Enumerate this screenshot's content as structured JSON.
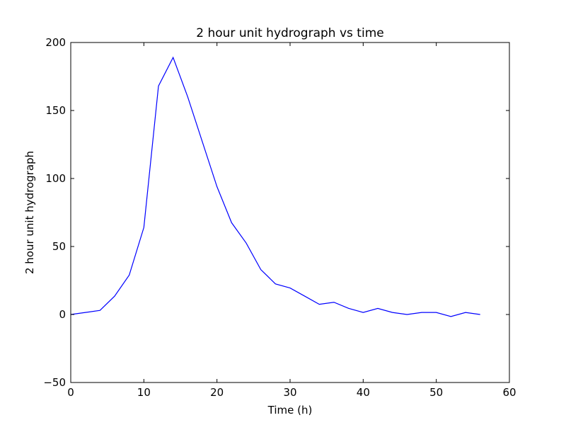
{
  "chart_data": {
    "type": "line",
    "title": "2 hour unit hydrograph vs time",
    "xlabel": "Time (h)",
    "ylabel": "2 hour unit hydrograph",
    "xlim": [
      0,
      60
    ],
    "ylim": [
      -50,
      200
    ],
    "xticks": [
      0,
      10,
      20,
      30,
      40,
      50,
      60
    ],
    "yticks": [
      -50,
      0,
      50,
      100,
      150,
      200
    ],
    "grid": false,
    "series": [
      {
        "color": "#0000ff",
        "x": [
          0,
          2,
          4,
          6,
          8,
          10,
          12,
          14,
          16,
          18,
          20,
          22,
          24,
          26,
          28,
          30,
          32,
          34,
          36,
          38,
          40,
          42,
          44,
          46,
          48,
          50,
          52,
          54,
          56
        ],
        "y": [
          0,
          1.5,
          3,
          13.5,
          29,
          64,
          168,
          189,
          160,
          127,
          94,
          67.5,
          52.5,
          33,
          22.5,
          19.5,
          13.5,
          7.5,
          9,
          4.5,
          1.5,
          4.5,
          1.5,
          0,
          1.5,
          1.5,
          -1.5,
          1.5,
          0
        ]
      }
    ]
  }
}
